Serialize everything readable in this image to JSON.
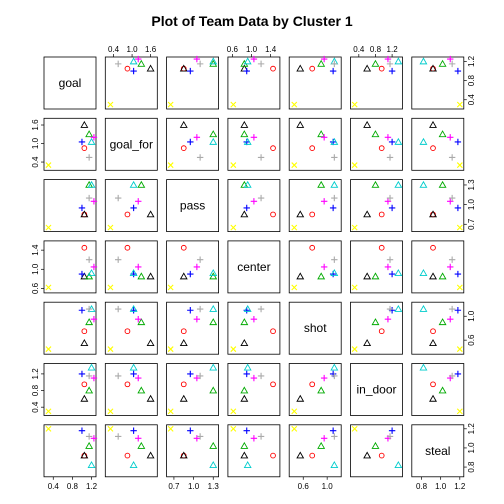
{
  "chart_data": {
    "type": "scatter",
    "subtype": "scatterplot-matrix",
    "title": "Plot of Team Data by Cluster 1",
    "variables": [
      "goal",
      "goal_for",
      "pass",
      "center",
      "shot",
      "in_door",
      "steal"
    ],
    "axis_ticks": {
      "goal": {
        "labels": [
          "0.4",
          "0.8",
          "1.2"
        ],
        "values": [
          0.4,
          0.8,
          1.2
        ]
      },
      "goal_for": {
        "labels": [
          "0.4",
          "1.0",
          "1.6"
        ],
        "values": [
          0.4,
          1.0,
          1.6
        ]
      },
      "pass": {
        "labels": [
          "0.7",
          "1.0",
          "1.3"
        ],
        "values": [
          0.7,
          1.0,
          1.3
        ]
      },
      "center": {
        "labels": [
          "0.6",
          "1.0",
          "1.4"
        ],
        "values": [
          0.6,
          1.0,
          1.4
        ]
      },
      "shot": {
        "labels": [
          "0.6",
          "1.0"
        ],
        "values": [
          0.6,
          1.0
        ]
      },
      "in_door": {
        "labels": [
          "0.4",
          "0.8",
          "1.2"
        ],
        "values": [
          0.4,
          0.8,
          1.2
        ]
      },
      "steal": {
        "labels": [
          "0.8",
          "1.0",
          "1.2"
        ],
        "values": [
          0.8,
          1.0,
          1.2
        ]
      }
    },
    "ranges": {
      "goal": [
        0.25,
        1.25
      ],
      "goal_for": [
        0.2,
        1.75
      ],
      "pass": [
        0.62,
        1.35
      ],
      "center": [
        0.55,
        1.55
      ],
      "shot": [
        0.4,
        1.2
      ],
      "in_door": [
        0.25,
        1.4
      ],
      "steal": [
        0.72,
        1.22
      ]
    },
    "points": [
      {
        "marker": "circle",
        "color": "#ff0000",
        "values": [
          1.05,
          0.85,
          0.85,
          1.45,
          0.75,
          0.95,
          0.92
        ]
      },
      {
        "marker": "triangle",
        "color": "#000000",
        "values": [
          1.05,
          1.6,
          0.85,
          0.85,
          0.55,
          0.6,
          0.92
        ]
      },
      {
        "marker": "triangle",
        "color": "#00aa00",
        "values": [
          1.15,
          1.3,
          1.3,
          0.85,
          0.9,
          0.8,
          1.02
        ]
      },
      {
        "marker": "plus",
        "color": "#0000ff",
        "values": [
          1.0,
          1.05,
          0.95,
          0.9,
          1.1,
          1.2,
          1.18
        ]
      },
      {
        "marker": "triangle",
        "color": "#00cccc",
        "values": [
          1.2,
          1.05,
          1.3,
          0.92,
          1.12,
          1.35,
          0.82
        ]
      },
      {
        "marker": "plus",
        "color": "#ff00ff",
        "values": [
          1.25,
          1.2,
          1.05,
          1.05,
          0.95,
          1.1,
          1.1
        ]
      },
      {
        "marker": "cross",
        "color": "#ffff00",
        "values": [
          0.3,
          0.3,
          0.65,
          0.62,
          0.45,
          0.3,
          1.2
        ]
      },
      {
        "marker": "plus",
        "color": "#aaaaaa",
        "values": [
          1.15,
          0.55,
          1.1,
          1.2,
          1.12,
          1.15,
          1.12
        ]
      }
    ],
    "grid": false,
    "legend": "none"
  }
}
